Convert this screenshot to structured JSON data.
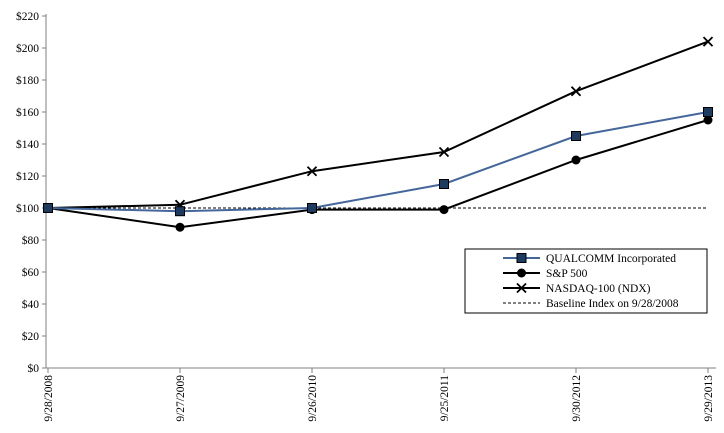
{
  "page": {
    "background": "#ffffff",
    "description_label": "Comparative total return stock performance chart"
  },
  "chart_data": {
    "type": "line",
    "title": "",
    "xlabel": "",
    "ylabel": "",
    "x_labels": [
      "9/28/2008",
      "9/27/2009",
      "9/26/2010",
      "9/25/2011",
      "9/30/2012",
      "9/29/2013"
    ],
    "y_ticks": [
      0,
      20,
      40,
      60,
      80,
      100,
      120,
      140,
      160,
      180,
      200,
      220
    ],
    "y_tick_prefix": "$",
    "ylim": [
      0,
      220
    ],
    "grid": false,
    "legend_position": "lower-right",
    "axis_color": "#808080",
    "text_color": "#000000",
    "series": [
      {
        "name": "QUALCOMM Incorporated",
        "marker": "square",
        "line_color": "#44679b",
        "marker_fill": "#1d3b5e",
        "marker_stroke": "#000000",
        "dashed": false,
        "values": [
          100,
          98,
          100,
          115,
          145,
          160
        ]
      },
      {
        "name": "S&P 500",
        "marker": "circle",
        "line_color": "#000000",
        "marker_fill": "#000000",
        "marker_stroke": "#000000",
        "dashed": false,
        "values": [
          100,
          88,
          99,
          99,
          130,
          155
        ]
      },
      {
        "name": "NASDAQ-100 (NDX)",
        "marker": "x",
        "line_color": "#000000",
        "marker_fill": "#000000",
        "marker_stroke": "#000000",
        "dashed": false,
        "values": [
          100,
          102,
          123,
          135,
          173,
          204
        ]
      },
      {
        "name": "Baseline Index on 9/28/2008",
        "marker": "none",
        "line_color": "#000000",
        "marker_fill": "#000000",
        "marker_stroke": "#000000",
        "dashed": true,
        "values": [
          100,
          100,
          100,
          100,
          100,
          100
        ]
      }
    ]
  }
}
